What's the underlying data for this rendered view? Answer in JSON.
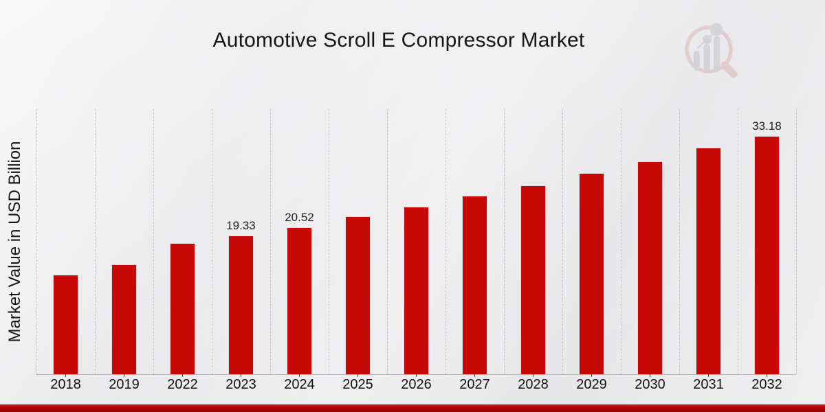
{
  "page": {
    "title": "Automotive Scroll E Compressor Market"
  },
  "chart_data": {
    "type": "bar",
    "title": "Automotive Scroll E Compressor Market",
    "xlabel": "",
    "ylabel": "Market Value in USD Billion",
    "categories": [
      "2018",
      "2019",
      "2022",
      "2023",
      "2024",
      "2025",
      "2026",
      "2027",
      "2028",
      "2029",
      "2030",
      "2031",
      "2032"
    ],
    "values": [
      13.9,
      15.3,
      18.3,
      19.33,
      20.52,
      22.0,
      23.3,
      24.9,
      26.3,
      28.0,
      29.7,
      31.6,
      33.18
    ],
    "data_labels": {
      "2023": "19.33",
      "2024": "20.52",
      "2032": "33.18"
    },
    "ylim": [
      0,
      36.93
    ],
    "grid": "vertical-dashed",
    "legend": "none",
    "bar_color": "#c80707",
    "unit": "USD Billion"
  },
  "branding": {
    "watermark_icon": "market-research-future-logo-magnifier-bar-chart",
    "watermark_ring_color": "#cf9393",
    "watermark_bar_color": "#a9a9b0"
  },
  "footer": {
    "band_color": "#b30404"
  }
}
